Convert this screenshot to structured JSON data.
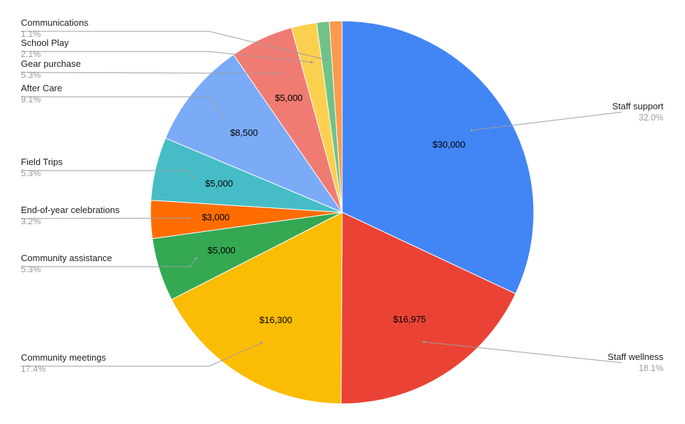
{
  "chart_data": {
    "type": "pie",
    "title": "",
    "start_angle_deg": 0,
    "direction": "clockwise",
    "slices": [
      {
        "label": "Staff support",
        "value": 30000,
        "value_label": "$30,000",
        "percent_label": "32.0%",
        "color": "#4285F4"
      },
      {
        "label": "Staff wellness",
        "value": 16975,
        "value_label": "$16,975",
        "percent_label": "18.1%",
        "color": "#EA4335"
      },
      {
        "label": "Community meetings",
        "value": 16300,
        "value_label": "$16,300",
        "percent_label": "17.4%",
        "color": "#FBBC04"
      },
      {
        "label": "Community assistance",
        "value": 5000,
        "value_label": "$5,000",
        "percent_label": "5.3%",
        "color": "#34A853"
      },
      {
        "label": "End-of-year celebrations",
        "value": 3000,
        "value_label": "$3,000",
        "percent_label": "3.2%",
        "color": "#FF6D01"
      },
      {
        "label": "Field Trips",
        "value": 5000,
        "value_label": "$5,000",
        "percent_label": "5.3%",
        "color": "#46BDC6"
      },
      {
        "label": "After Care",
        "value": 8500,
        "value_label": "$8,500",
        "percent_label": "9.1%",
        "color": "#7BAAF7"
      },
      {
        "label": "Gear purchase",
        "value": 5000,
        "value_label": "$5,000",
        "percent_label": "5.3%",
        "color": "#F07B72"
      },
      {
        "label": "School Play",
        "value": 2000,
        "value_label": "",
        "percent_label": "2.1%",
        "color": "#FCD04F"
      },
      {
        "label": "Communications",
        "value": 1000,
        "value_label": "",
        "percent_label": "1.1%",
        "color": "#71C287"
      },
      {
        "label": "",
        "value": 1000,
        "value_label": "",
        "percent_label": "",
        "color": "#FF994D"
      }
    ]
  }
}
